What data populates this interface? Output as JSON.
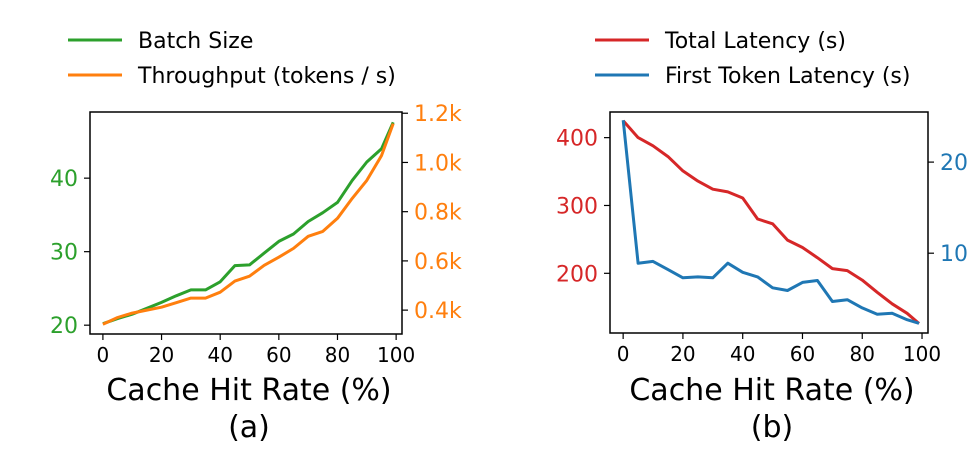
{
  "chart_data": [
    {
      "type": "line",
      "panel_label": "(a)",
      "xlabel": "Cache Hit Rate (%)",
      "xlim": [
        -4.4,
        102
      ],
      "xticks": [
        0,
        20,
        40,
        60,
        80,
        100
      ],
      "x": [
        0,
        5,
        10,
        15,
        20,
        25,
        30,
        35,
        40,
        45,
        50,
        55,
        60,
        65,
        70,
        75,
        80,
        85,
        90,
        95,
        99
      ],
      "left_axis": {
        "ylim": [
          18.8,
          49.0
        ],
        "ticks": [
          20,
          30,
          40
        ],
        "tick_labels": [
          "20",
          "30",
          "40"
        ],
        "color": "#2ca02c"
      },
      "right_axis": {
        "ylim": [
          0.303,
          1.205
        ],
        "ticks": [
          0.4,
          0.6,
          0.8,
          1.0,
          1.2
        ],
        "tick_labels": [
          "0.4k",
          "0.6k",
          "0.8k",
          "1.0k",
          "1.2k"
        ],
        "color": "#ff7f0e"
      },
      "series": [
        {
          "name": "Batch Size",
          "axis": "left",
          "color": "#2ca02c",
          "values": [
            20.2,
            20.9,
            21.5,
            22.3,
            23.1,
            24.0,
            24.8,
            24.8,
            25.9,
            28.1,
            28.2,
            29.8,
            31.4,
            32.4,
            34.1,
            35.3,
            36.7,
            39.7,
            42.2,
            44.0,
            47.6
          ]
        },
        {
          "name": "Throughput (tokens / s)",
          "axis": "right",
          "color": "#ff7f0e",
          "values": [
            0.343,
            0.37,
            0.388,
            0.4,
            0.412,
            0.43,
            0.449,
            0.449,
            0.473,
            0.518,
            0.538,
            0.582,
            0.615,
            0.651,
            0.7,
            0.72,
            0.773,
            0.854,
            0.927,
            1.028,
            1.158
          ]
        }
      ],
      "legend": "top"
    },
    {
      "type": "line",
      "panel_label": "(b)",
      "xlabel": "Cache Hit Rate (%)",
      "xlim": [
        -4.4,
        102
      ],
      "xticks": [
        0,
        20,
        40,
        60,
        80,
        100
      ],
      "x": [
        0,
        5,
        10,
        15,
        20,
        25,
        30,
        35,
        40,
        45,
        50,
        55,
        60,
        65,
        70,
        75,
        80,
        85,
        90,
        95,
        99
      ],
      "left_axis": {
        "ylim": [
          112,
          437.8
        ],
        "ticks": [
          200,
          300,
          400
        ],
        "tick_labels": [
          "200",
          "300",
          "400"
        ],
        "color": "#d62728"
      },
      "right_axis": {
        "ylim": [
          1.24,
          25.5
        ],
        "ticks": [
          10,
          20
        ],
        "tick_labels": [
          "10",
          "20"
        ],
        "color": "#1f77b4"
      },
      "series": [
        {
          "name": "Total Latency (s)",
          "axis": "left",
          "color": "#d62728",
          "values": [
            425,
            400,
            388,
            372,
            351,
            336,
            324,
            320,
            311,
            280,
            273,
            249,
            238,
            223,
            207,
            204,
            190,
            172,
            155,
            141,
            126
          ]
        },
        {
          "name": "First Token Latency (s)",
          "axis": "right",
          "color": "#1f77b4",
          "values": [
            24.6,
            8.9,
            9.1,
            8.2,
            7.3,
            7.4,
            7.3,
            8.9,
            7.9,
            7.4,
            6.2,
            5.9,
            6.8,
            7.0,
            4.7,
            4.9,
            4.0,
            3.3,
            3.4,
            2.7,
            2.3
          ]
        }
      ],
      "legend": "top"
    }
  ]
}
